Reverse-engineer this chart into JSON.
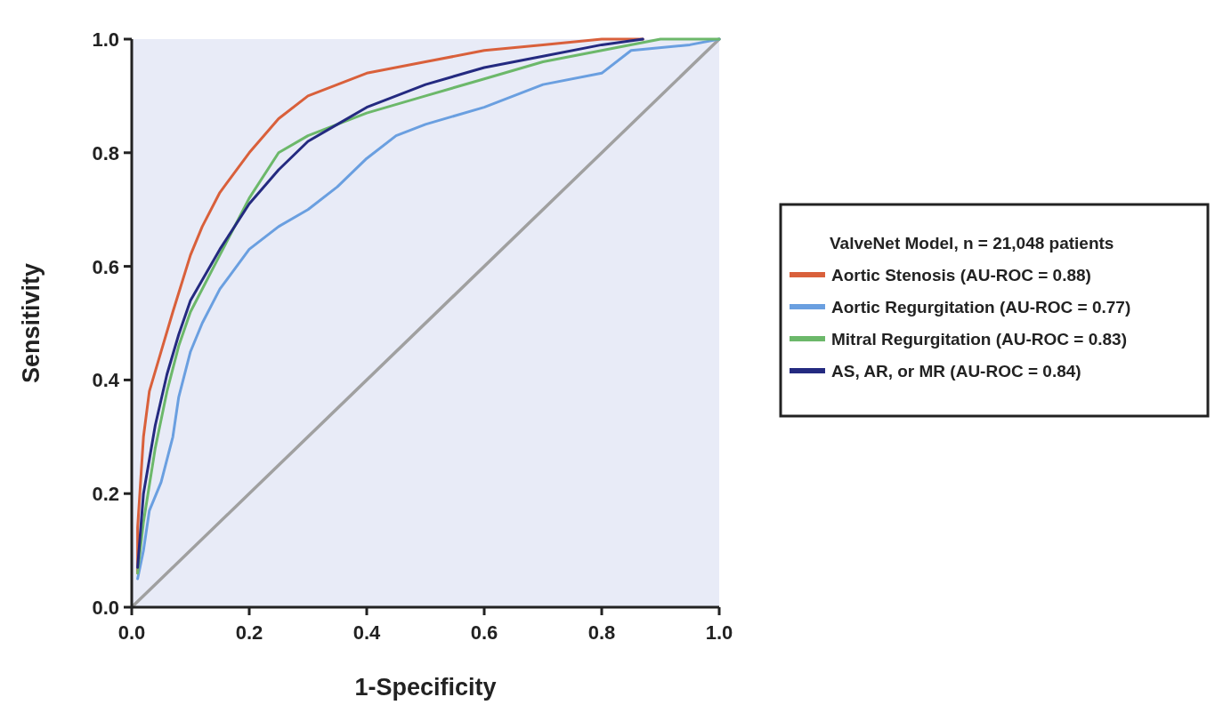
{
  "chart_data": {
    "type": "line",
    "xlabel": "1-Specificity",
    "ylabel": "Sensitivity",
    "legend_title": "ValveNet Model, n = 21,048 patients",
    "legend": "right",
    "grid": false,
    "xlim": [
      0,
      1
    ],
    "ylim": [
      0,
      1
    ],
    "xticks": [
      {
        "value": 0,
        "label": "0.0"
      },
      0.2,
      0.4,
      0.6,
      0.8,
      {
        "value": 1,
        "label": "1.0"
      }
    ],
    "yticks": [
      {
        "value": 0,
        "label": "0.0"
      },
      0.2,
      0.4,
      0.6,
      0.8,
      {
        "value": 1,
        "label": "1.0"
      }
    ],
    "series": [
      {
        "color": "#a0a0a0",
        "x": [
          0,
          1
        ],
        "values": [
          0,
          1
        ]
      },
      {
        "name": "Aortic Stenosis (AU-ROC = 0.88)",
        "color": "#d9603b",
        "x": [
          0.01,
          0.01,
          0.02,
          0.03,
          0.05,
          0.07,
          0.1,
          0.12,
          0.15,
          0.2,
          0.25,
          0.3,
          0.35,
          0.4,
          0.5,
          0.6,
          0.7,
          0.8,
          0.87
        ],
        "values": [
          0.06,
          0.14,
          0.3,
          0.38,
          0.45,
          0.52,
          0.62,
          0.67,
          0.73,
          0.8,
          0.86,
          0.9,
          0.92,
          0.94,
          0.96,
          0.98,
          0.99,
          1.0,
          1.0
        ]
      },
      {
        "name": "Aortic Regurgitation (AU-ROC = 0.77)",
        "color": "#6a9fe0",
        "x": [
          0.01,
          0.02,
          0.03,
          0.05,
          0.07,
          0.08,
          0.1,
          0.12,
          0.15,
          0.2,
          0.25,
          0.3,
          0.35,
          0.4,
          0.45,
          0.5,
          0.6,
          0.7,
          0.8,
          0.85,
          0.95,
          1.0
        ],
        "values": [
          0.05,
          0.1,
          0.17,
          0.22,
          0.3,
          0.37,
          0.45,
          0.5,
          0.56,
          0.63,
          0.67,
          0.7,
          0.74,
          0.79,
          0.83,
          0.85,
          0.88,
          0.92,
          0.94,
          0.98,
          0.99,
          1.0
        ]
      },
      {
        "name": "Mitral Regurgitation (AU-ROC = 0.83)",
        "color": "#6cb86a",
        "x": [
          0.01,
          0.02,
          0.04,
          0.06,
          0.08,
          0.1,
          0.15,
          0.2,
          0.25,
          0.3,
          0.35,
          0.4,
          0.5,
          0.6,
          0.7,
          0.8,
          0.9,
          1.0
        ],
        "values": [
          0.06,
          0.15,
          0.28,
          0.38,
          0.46,
          0.52,
          0.62,
          0.72,
          0.8,
          0.83,
          0.85,
          0.87,
          0.9,
          0.93,
          0.96,
          0.98,
          1.0,
          1.0
        ]
      },
      {
        "name": "AS, AR, or MR (AU-ROC = 0.84)",
        "color": "#242a80",
        "x": [
          0.01,
          0.02,
          0.04,
          0.06,
          0.08,
          0.1,
          0.15,
          0.2,
          0.25,
          0.3,
          0.35,
          0.4,
          0.5,
          0.6,
          0.7,
          0.8,
          0.87
        ],
        "values": [
          0.07,
          0.2,
          0.32,
          0.41,
          0.48,
          0.54,
          0.63,
          0.71,
          0.77,
          0.82,
          0.85,
          0.88,
          0.92,
          0.95,
          0.97,
          0.99,
          1.0
        ]
      }
    ]
  }
}
